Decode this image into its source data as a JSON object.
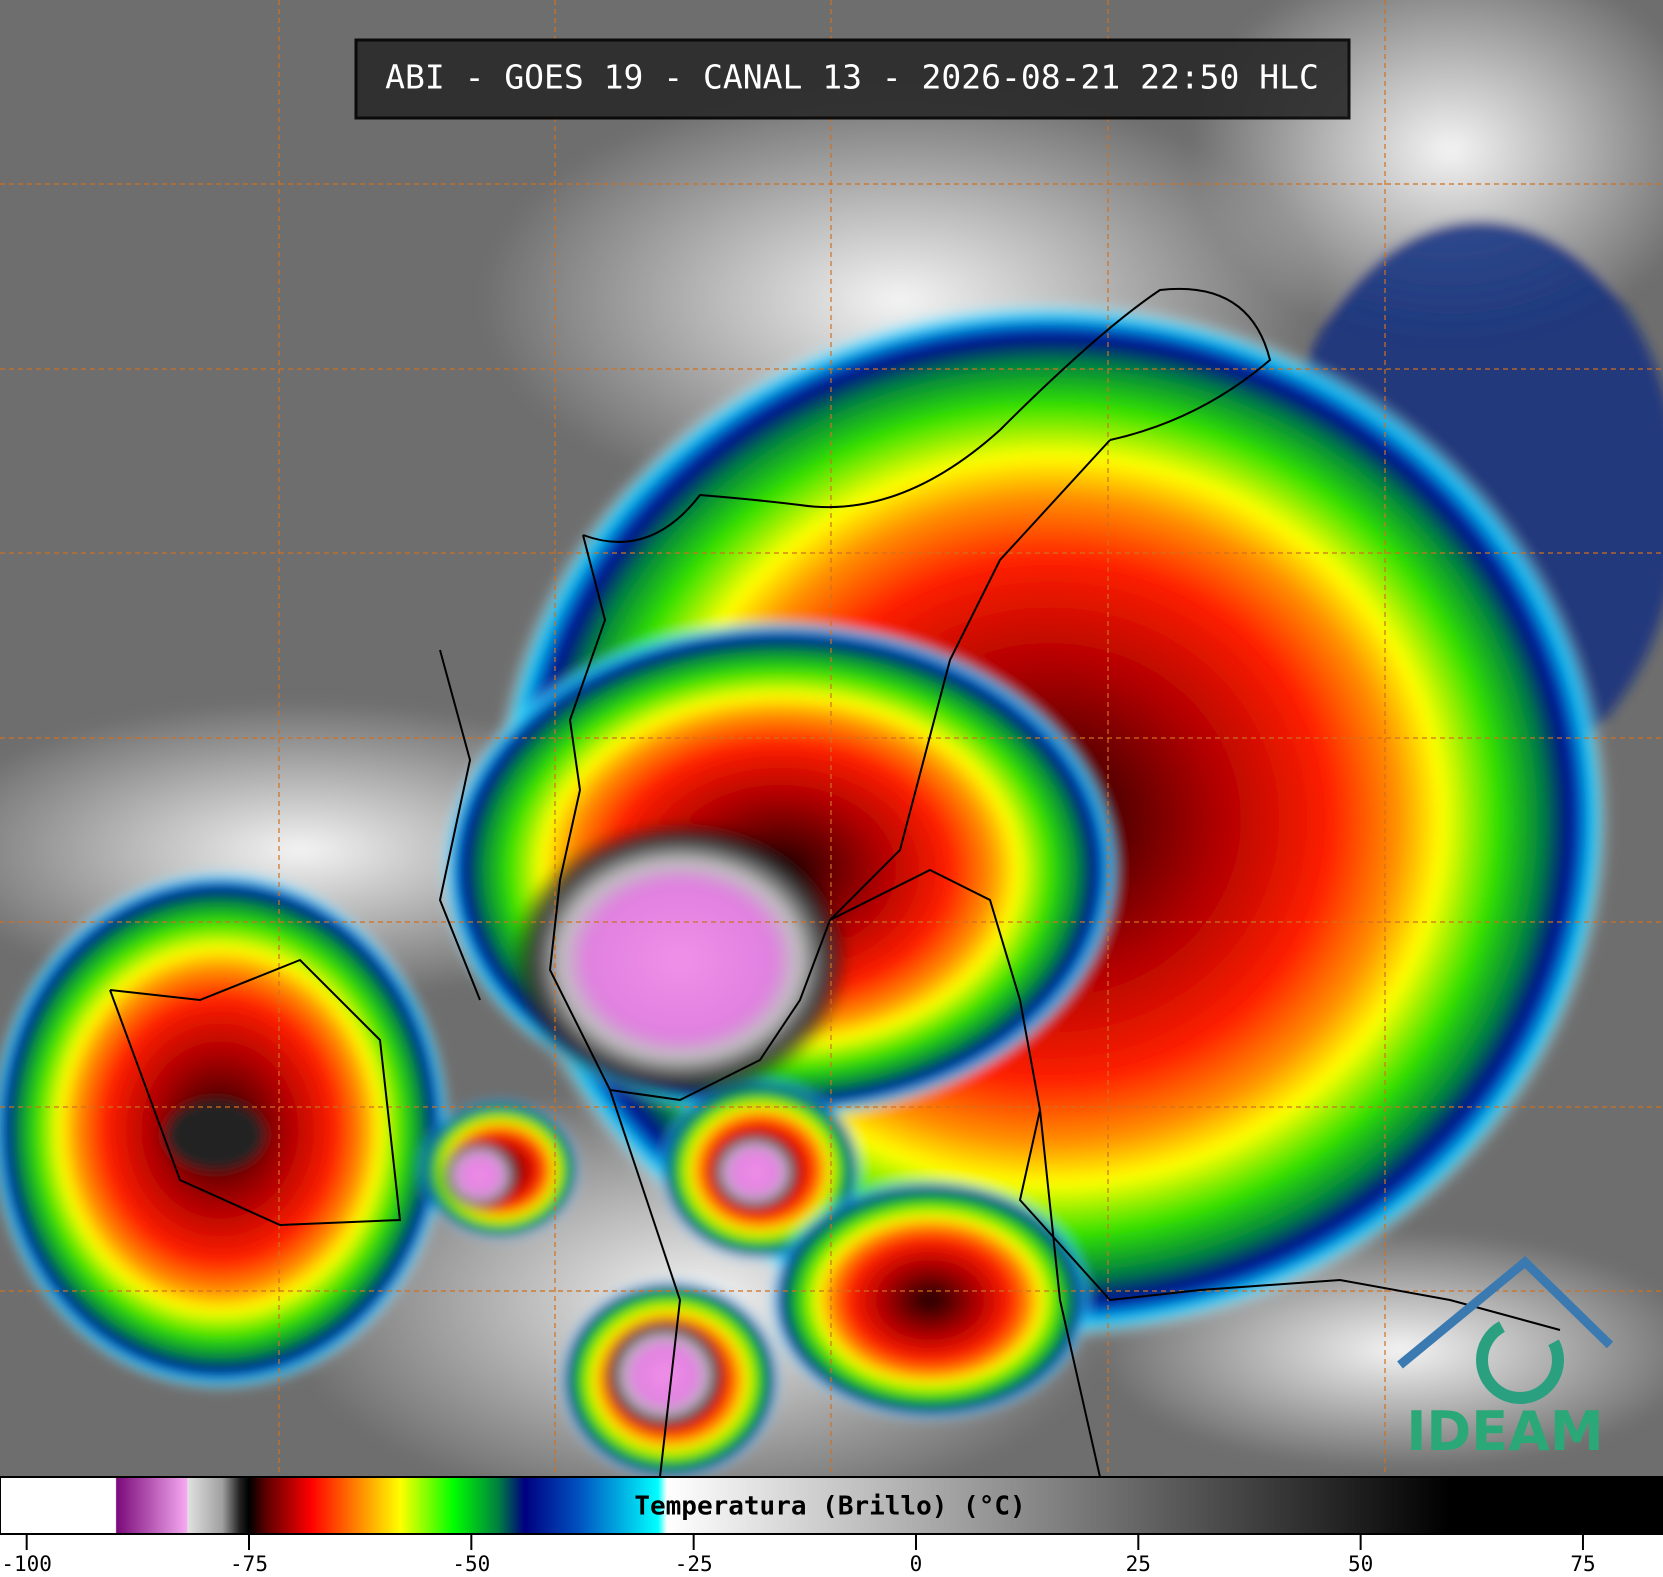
{
  "header": {
    "title": "ABI - GOES 19 - CANAL 13 - 2026-08-21 22:50 HLC"
  },
  "logo": {
    "text": "IDEAM"
  },
  "colorbar": {
    "label": "Temperatura (Brillo) (°C)",
    "range": [
      -103,
      84
    ],
    "ticks": [
      -100,
      -75,
      -50,
      -25,
      0,
      25,
      50,
      75
    ],
    "stops": [
      {
        "value": -103,
        "color": "#ffffff"
      },
      {
        "value": -90,
        "color": "#ffffff"
      },
      {
        "value": -89.9,
        "color": "#7a0a7a"
      },
      {
        "value": -82,
        "color": "#f5a8f0"
      },
      {
        "value": -81.9,
        "color": "#e0e0e0"
      },
      {
        "value": -78,
        "color": "#a0a0a0"
      },
      {
        "value": -76,
        "color": "#202020"
      },
      {
        "value": -75,
        "color": "#000000"
      },
      {
        "value": -73,
        "color": "#600000"
      },
      {
        "value": -68,
        "color": "#ff0000"
      },
      {
        "value": -63,
        "color": "#ff8000"
      },
      {
        "value": -58,
        "color": "#ffff00"
      },
      {
        "value": -52,
        "color": "#00ff00"
      },
      {
        "value": -47,
        "color": "#008040"
      },
      {
        "value": -44,
        "color": "#000080"
      },
      {
        "value": -38,
        "color": "#0050c0"
      },
      {
        "value": -29,
        "color": "#00ffff"
      },
      {
        "value": -28,
        "color": "#ffffff"
      },
      {
        "value": 60,
        "color": "#000000"
      },
      {
        "value": 84,
        "color": "#000000"
      }
    ]
  }
}
